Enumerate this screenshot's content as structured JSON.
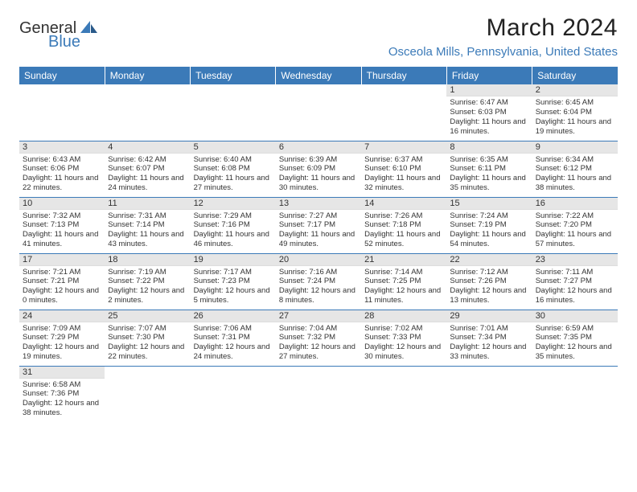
{
  "logo": {
    "general": "General",
    "blue": "Blue"
  },
  "title": "March 2024",
  "location": "Osceola Mills, Pennsylvania, United States",
  "colors": {
    "header_bg": "#3b7ab8",
    "header_text": "#ffffff",
    "daynum_bg": "#e6e6e6",
    "border": "#3b7ab8",
    "text": "#333333",
    "accent": "#3b7ab8"
  },
  "day_headers": [
    "Sunday",
    "Monday",
    "Tuesday",
    "Wednesday",
    "Thursday",
    "Friday",
    "Saturday"
  ],
  "weeks": [
    [
      {
        "n": "",
        "sunrise": "",
        "sunset": "",
        "daylight": ""
      },
      {
        "n": "",
        "sunrise": "",
        "sunset": "",
        "daylight": ""
      },
      {
        "n": "",
        "sunrise": "",
        "sunset": "",
        "daylight": ""
      },
      {
        "n": "",
        "sunrise": "",
        "sunset": "",
        "daylight": ""
      },
      {
        "n": "",
        "sunrise": "",
        "sunset": "",
        "daylight": ""
      },
      {
        "n": "1",
        "sunrise": "Sunrise: 6:47 AM",
        "sunset": "Sunset: 6:03 PM",
        "daylight": "Daylight: 11 hours and 16 minutes."
      },
      {
        "n": "2",
        "sunrise": "Sunrise: 6:45 AM",
        "sunset": "Sunset: 6:04 PM",
        "daylight": "Daylight: 11 hours and 19 minutes."
      }
    ],
    [
      {
        "n": "3",
        "sunrise": "Sunrise: 6:43 AM",
        "sunset": "Sunset: 6:06 PM",
        "daylight": "Daylight: 11 hours and 22 minutes."
      },
      {
        "n": "4",
        "sunrise": "Sunrise: 6:42 AM",
        "sunset": "Sunset: 6:07 PM",
        "daylight": "Daylight: 11 hours and 24 minutes."
      },
      {
        "n": "5",
        "sunrise": "Sunrise: 6:40 AM",
        "sunset": "Sunset: 6:08 PM",
        "daylight": "Daylight: 11 hours and 27 minutes."
      },
      {
        "n": "6",
        "sunrise": "Sunrise: 6:39 AM",
        "sunset": "Sunset: 6:09 PM",
        "daylight": "Daylight: 11 hours and 30 minutes."
      },
      {
        "n": "7",
        "sunrise": "Sunrise: 6:37 AM",
        "sunset": "Sunset: 6:10 PM",
        "daylight": "Daylight: 11 hours and 32 minutes."
      },
      {
        "n": "8",
        "sunrise": "Sunrise: 6:35 AM",
        "sunset": "Sunset: 6:11 PM",
        "daylight": "Daylight: 11 hours and 35 minutes."
      },
      {
        "n": "9",
        "sunrise": "Sunrise: 6:34 AM",
        "sunset": "Sunset: 6:12 PM",
        "daylight": "Daylight: 11 hours and 38 minutes."
      }
    ],
    [
      {
        "n": "10",
        "sunrise": "Sunrise: 7:32 AM",
        "sunset": "Sunset: 7:13 PM",
        "daylight": "Daylight: 11 hours and 41 minutes."
      },
      {
        "n": "11",
        "sunrise": "Sunrise: 7:31 AM",
        "sunset": "Sunset: 7:14 PM",
        "daylight": "Daylight: 11 hours and 43 minutes."
      },
      {
        "n": "12",
        "sunrise": "Sunrise: 7:29 AM",
        "sunset": "Sunset: 7:16 PM",
        "daylight": "Daylight: 11 hours and 46 minutes."
      },
      {
        "n": "13",
        "sunrise": "Sunrise: 7:27 AM",
        "sunset": "Sunset: 7:17 PM",
        "daylight": "Daylight: 11 hours and 49 minutes."
      },
      {
        "n": "14",
        "sunrise": "Sunrise: 7:26 AM",
        "sunset": "Sunset: 7:18 PM",
        "daylight": "Daylight: 11 hours and 52 minutes."
      },
      {
        "n": "15",
        "sunrise": "Sunrise: 7:24 AM",
        "sunset": "Sunset: 7:19 PM",
        "daylight": "Daylight: 11 hours and 54 minutes."
      },
      {
        "n": "16",
        "sunrise": "Sunrise: 7:22 AM",
        "sunset": "Sunset: 7:20 PM",
        "daylight": "Daylight: 11 hours and 57 minutes."
      }
    ],
    [
      {
        "n": "17",
        "sunrise": "Sunrise: 7:21 AM",
        "sunset": "Sunset: 7:21 PM",
        "daylight": "Daylight: 12 hours and 0 minutes."
      },
      {
        "n": "18",
        "sunrise": "Sunrise: 7:19 AM",
        "sunset": "Sunset: 7:22 PM",
        "daylight": "Daylight: 12 hours and 2 minutes."
      },
      {
        "n": "19",
        "sunrise": "Sunrise: 7:17 AM",
        "sunset": "Sunset: 7:23 PM",
        "daylight": "Daylight: 12 hours and 5 minutes."
      },
      {
        "n": "20",
        "sunrise": "Sunrise: 7:16 AM",
        "sunset": "Sunset: 7:24 PM",
        "daylight": "Daylight: 12 hours and 8 minutes."
      },
      {
        "n": "21",
        "sunrise": "Sunrise: 7:14 AM",
        "sunset": "Sunset: 7:25 PM",
        "daylight": "Daylight: 12 hours and 11 minutes."
      },
      {
        "n": "22",
        "sunrise": "Sunrise: 7:12 AM",
        "sunset": "Sunset: 7:26 PM",
        "daylight": "Daylight: 12 hours and 13 minutes."
      },
      {
        "n": "23",
        "sunrise": "Sunrise: 7:11 AM",
        "sunset": "Sunset: 7:27 PM",
        "daylight": "Daylight: 12 hours and 16 minutes."
      }
    ],
    [
      {
        "n": "24",
        "sunrise": "Sunrise: 7:09 AM",
        "sunset": "Sunset: 7:29 PM",
        "daylight": "Daylight: 12 hours and 19 minutes."
      },
      {
        "n": "25",
        "sunrise": "Sunrise: 7:07 AM",
        "sunset": "Sunset: 7:30 PM",
        "daylight": "Daylight: 12 hours and 22 minutes."
      },
      {
        "n": "26",
        "sunrise": "Sunrise: 7:06 AM",
        "sunset": "Sunset: 7:31 PM",
        "daylight": "Daylight: 12 hours and 24 minutes."
      },
      {
        "n": "27",
        "sunrise": "Sunrise: 7:04 AM",
        "sunset": "Sunset: 7:32 PM",
        "daylight": "Daylight: 12 hours and 27 minutes."
      },
      {
        "n": "28",
        "sunrise": "Sunrise: 7:02 AM",
        "sunset": "Sunset: 7:33 PM",
        "daylight": "Daylight: 12 hours and 30 minutes."
      },
      {
        "n": "29",
        "sunrise": "Sunrise: 7:01 AM",
        "sunset": "Sunset: 7:34 PM",
        "daylight": "Daylight: 12 hours and 33 minutes."
      },
      {
        "n": "30",
        "sunrise": "Sunrise: 6:59 AM",
        "sunset": "Sunset: 7:35 PM",
        "daylight": "Daylight: 12 hours and 35 minutes."
      }
    ],
    [
      {
        "n": "31",
        "sunrise": "Sunrise: 6:58 AM",
        "sunset": "Sunset: 7:36 PM",
        "daylight": "Daylight: 12 hours and 38 minutes."
      },
      {
        "n": "",
        "sunrise": "",
        "sunset": "",
        "daylight": ""
      },
      {
        "n": "",
        "sunrise": "",
        "sunset": "",
        "daylight": ""
      },
      {
        "n": "",
        "sunrise": "",
        "sunset": "",
        "daylight": ""
      },
      {
        "n": "",
        "sunrise": "",
        "sunset": "",
        "daylight": ""
      },
      {
        "n": "",
        "sunrise": "",
        "sunset": "",
        "daylight": ""
      },
      {
        "n": "",
        "sunrise": "",
        "sunset": "",
        "daylight": ""
      }
    ]
  ]
}
